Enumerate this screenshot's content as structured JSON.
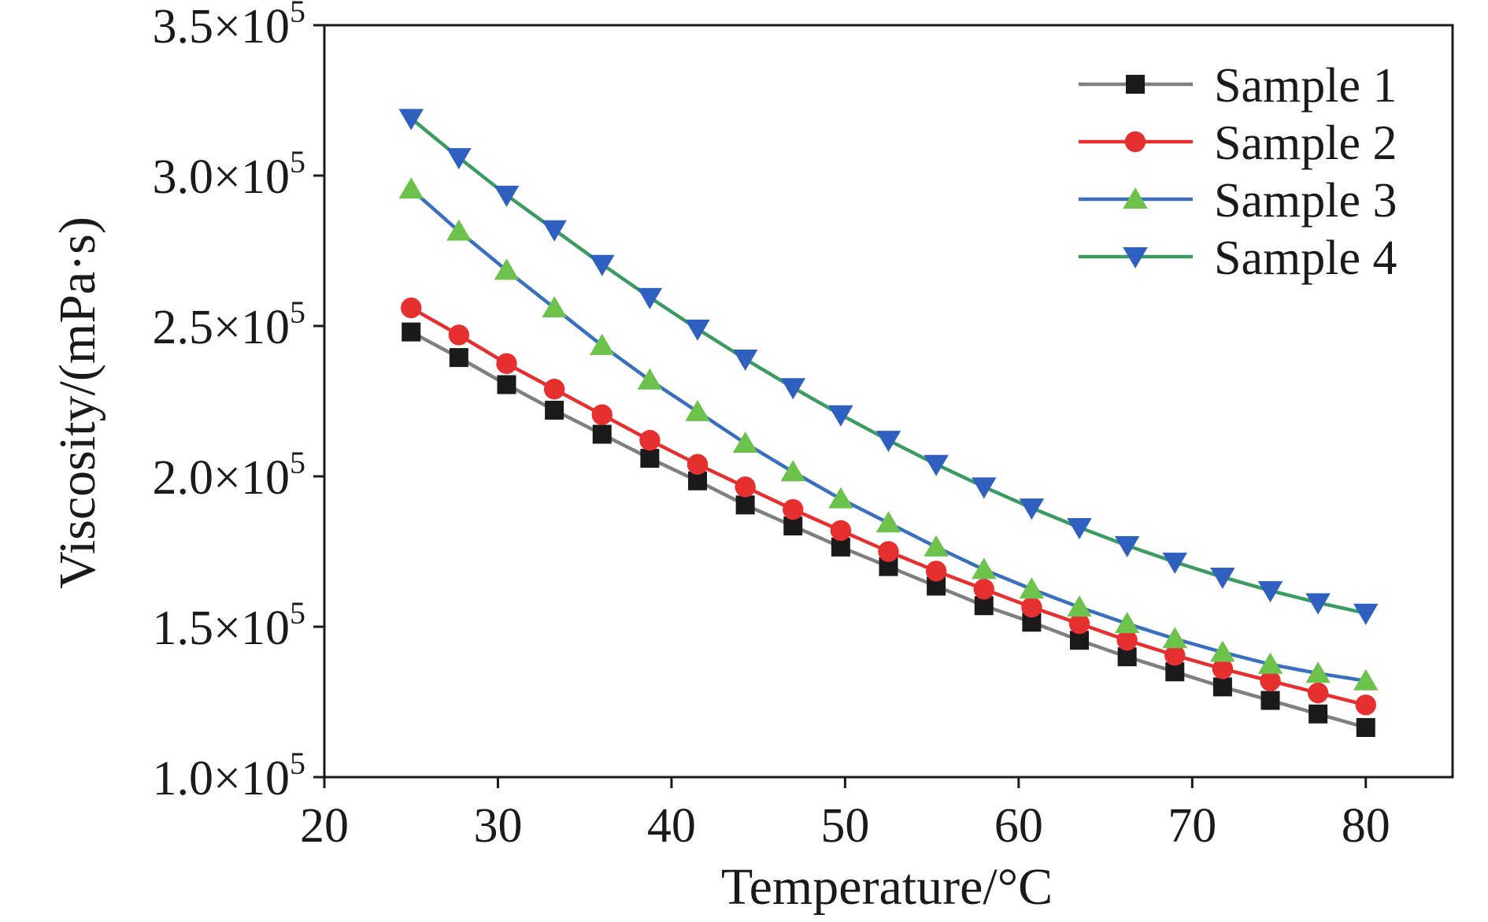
{
  "chart_data": {
    "type": "line",
    "title": "",
    "xlabel": "Temperature/°C",
    "ylabel": "Viscosity/(mPa·s)",
    "xlim": [
      20,
      85
    ],
    "ylim": [
      100000,
      350000
    ],
    "x_ticks": [
      20,
      30,
      40,
      50,
      60,
      70,
      80
    ],
    "y_ticks": [
      {
        "mantissa": "1.0×10",
        "exp": "5",
        "value": 100000
      },
      {
        "mantissa": "1.5×10",
        "exp": "5",
        "value": 150000
      },
      {
        "mantissa": "2.0×10",
        "exp": "5",
        "value": 200000
      },
      {
        "mantissa": "2.5×10",
        "exp": "5",
        "value": 250000
      },
      {
        "mantissa": "3.0×10",
        "exp": "5",
        "value": 300000
      },
      {
        "mantissa": "3.5×10",
        "exp": "5",
        "value": 350000
      }
    ],
    "legend_position": "top-right",
    "x": [
      25.0,
      27.75,
      30.5,
      33.25,
      36.0,
      38.75,
      41.5,
      44.25,
      47.0,
      49.75,
      52.5,
      55.25,
      58.0,
      60.75,
      63.5,
      66.25,
      69.0,
      71.75,
      74.5,
      77.25,
      80.0
    ],
    "series": [
      {
        "name": "Sample 1",
        "marker": "square",
        "line_color": "#7f7f7f",
        "marker_color": "#1a1a1a",
        "values": [
          248000,
          239500,
          230500,
          222000,
          214000,
          206000,
          198500,
          190500,
          183500,
          176500,
          170000,
          163500,
          157000,
          151500,
          145500,
          140000,
          135000,
          130000,
          125500,
          121000,
          116500
        ]
      },
      {
        "name": "Sample 2",
        "marker": "circle",
        "line_color": "#e63030",
        "marker_color": "#e63030",
        "values": [
          256000,
          247000,
          237500,
          229000,
          220500,
          212000,
          204000,
          196500,
          189000,
          182000,
          175000,
          168500,
          162500,
          156500,
          151000,
          145500,
          140500,
          136000,
          132000,
          128000,
          124000
        ]
      },
      {
        "name": "Sample 3",
        "marker": "triangle-up",
        "line_color": "#3a6fbf",
        "marker_color": "#6cc24a",
        "values": [
          295500,
          281500,
          268500,
          256000,
          243500,
          232000,
          221500,
          211000,
          201500,
          192500,
          184500,
          176500,
          169000,
          162500,
          156500,
          151000,
          146000,
          141500,
          137500,
          134500,
          132000
        ]
      },
      {
        "name": "Sample 4",
        "marker": "triangle-down",
        "line_color": "#3a9b63",
        "marker_color": "#2f5fbf",
        "values": [
          319000,
          306000,
          293500,
          282000,
          270500,
          259500,
          249000,
          239000,
          229500,
          220500,
          212000,
          204000,
          196500,
          189500,
          183000,
          177000,
          171500,
          166500,
          162000,
          158000,
          154500
        ]
      }
    ]
  }
}
